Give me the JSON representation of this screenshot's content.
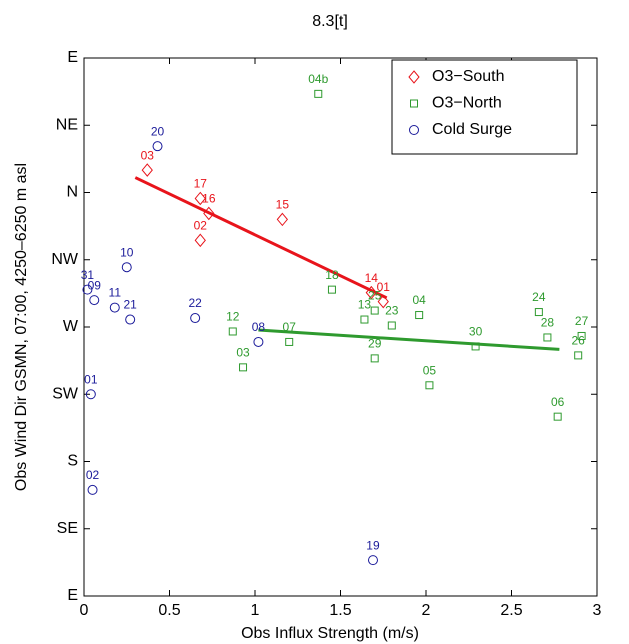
{
  "chart_data": {
    "type": "scatter",
    "title": "8.3[t]",
    "x_label": "Obs Influx Strength (m/s)",
    "y_label": "Obs Wind Dir GSMN, 07:00, 4250–6250 m asl",
    "xlim": [
      0,
      3
    ],
    "xticks": [
      0,
      0.5,
      1,
      1.5,
      2,
      2.5,
      3
    ],
    "ylim": [
      90,
      450
    ],
    "yticks": [
      {
        "value": 90,
        "label": "E"
      },
      {
        "value": 135,
        "label": "SE"
      },
      {
        "value": 180,
        "label": "S"
      },
      {
        "value": 225,
        "label": "SW"
      },
      {
        "value": 270,
        "label": "W"
      },
      {
        "value": 315,
        "label": "NW"
      },
      {
        "value": 360,
        "label": "N"
      },
      {
        "value": 405,
        "label": "NE"
      },
      {
        "value": 450,
        "label": "E"
      }
    ],
    "legend": "upper right",
    "series": [
      {
        "name": "O3−South",
        "color": "#e8141b",
        "marker": "diamond",
        "labels": [
          "03",
          "17",
          "16",
          "02",
          "15",
          "14",
          "01"
        ],
        "x": [
          0.37,
          0.68,
          0.73,
          0.68,
          1.16,
          1.68,
          1.75
        ],
        "values": [
          375,
          356,
          346,
          328,
          342,
          293,
          287
        ],
        "fit": {
          "x": [
            0.3,
            1.77
          ],
          "values": [
            370,
            289.5
          ]
        }
      },
      {
        "name": "O3−North",
        "color": "#2e9a2e",
        "marker": "square",
        "labels": [
          "04b",
          "18",
          "13",
          "25",
          "23",
          "04",
          "12",
          "07",
          "03",
          "29",
          "05",
          "30",
          "24",
          "28",
          "27",
          "26",
          "06"
        ],
        "x": [
          1.37,
          1.45,
          1.64,
          1.7,
          1.8,
          1.96,
          0.87,
          1.2,
          0.93,
          1.7,
          2.02,
          2.29,
          2.66,
          2.71,
          2.91,
          2.89,
          2.77
        ],
        "values": [
          426,
          295,
          275,
          281,
          271,
          278,
          267,
          260,
          243,
          249,
          231,
          257,
          280,
          263,
          264,
          251,
          210
        ],
        "fit": {
          "x": [
            1.02,
            2.78
          ],
          "values": [
            268,
            255
          ]
        }
      },
      {
        "name": "Cold Surge",
        "color": "#1b1b9a",
        "marker": "circle",
        "labels": [
          "20",
          "10",
          "31",
          "09",
          "11",
          "21",
          "22",
          "08",
          "01",
          "02",
          "19"
        ],
        "x": [
          0.43,
          0.25,
          0.02,
          0.06,
          0.18,
          0.27,
          0.65,
          1.02,
          0.04,
          0.05,
          1.69
        ],
        "values": [
          391,
          310,
          295,
          288,
          283,
          275,
          276,
          260,
          225,
          161,
          114
        ]
      }
    ]
  }
}
